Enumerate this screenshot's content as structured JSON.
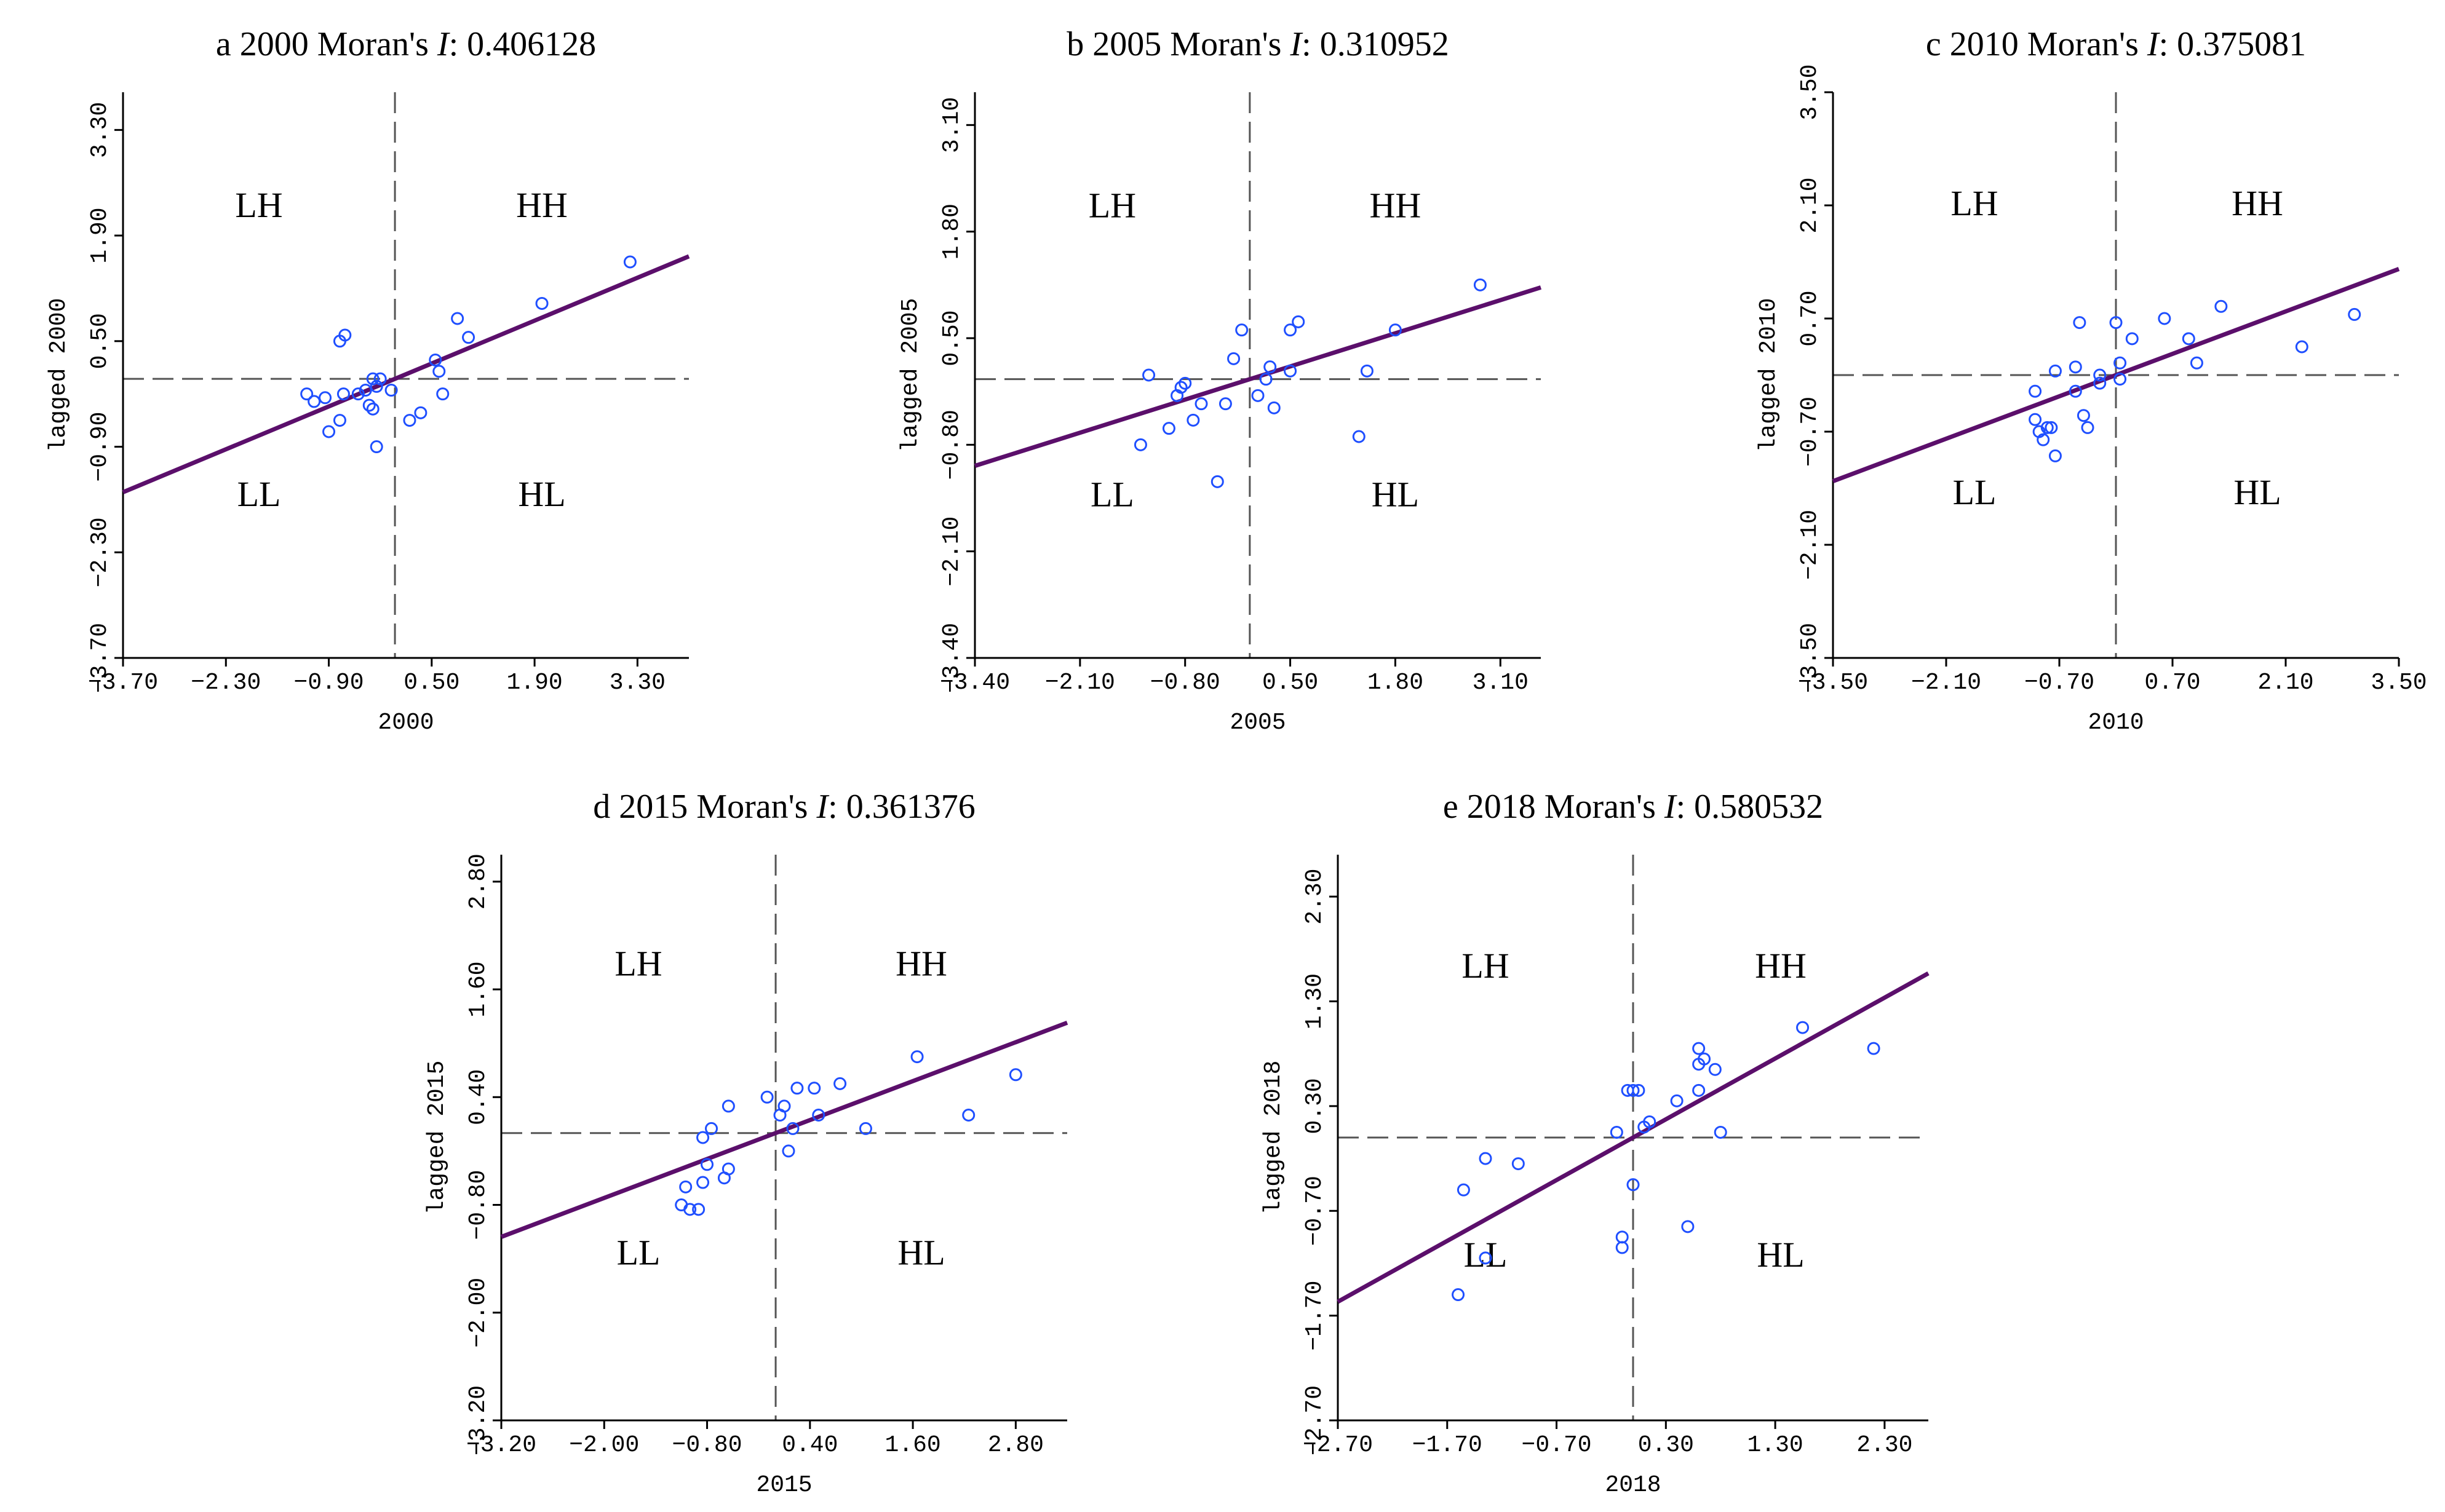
{
  "figure": {
    "statistic_label": "Moran's ",
    "statistic_symbol": "I",
    "quadrant_labels": {
      "lh": "LH",
      "hh": "HH",
      "ll": "LL",
      "hl": "HL"
    },
    "colors": {
      "points": "#1f4fff",
      "fit_line": "#5b0f6b",
      "axes": "#000000",
      "reference_lines": "#555555"
    }
  },
  "chart_data": [
    {
      "type": "scatter",
      "panel_letter": "a",
      "year": "2000",
      "morans_i": "0.406128",
      "xlabel": "2000",
      "ylabel": "lagged 2000",
      "xlim": [
        -3.7,
        4.0
      ],
      "ylim": [
        -3.7,
        3.8
      ],
      "xticks": [
        -3.7,
        -2.3,
        -0.9,
        0.5,
        1.9,
        3.3
      ],
      "xtick_labels": [
        "-3.70",
        "-2.30",
        "-0.90",
        "0.50",
        "1.90",
        "3.30"
      ],
      "yticks": [
        -3.7,
        -2.3,
        -0.9,
        0.5,
        1.9,
        3.3
      ],
      "ytick_labels": [
        "-3.70",
        "-2.30",
        "-0.90",
        "0.50",
        "1.90",
        "3.30"
      ],
      "slope": 0.406128,
      "points": [
        [
          -1.2,
          -0.2
        ],
        [
          -1.1,
          -0.3
        ],
        [
          -0.95,
          -0.25
        ],
        [
          -0.9,
          -0.7
        ],
        [
          -0.75,
          -0.55
        ],
        [
          -0.7,
          -0.2
        ],
        [
          -0.75,
          0.5
        ],
        [
          -0.68,
          0.58
        ],
        [
          -0.5,
          -0.2
        ],
        [
          -0.4,
          -0.15
        ],
        [
          -0.35,
          -0.35
        ],
        [
          -0.3,
          -0.4
        ],
        [
          -0.3,
          0.0
        ],
        [
          -0.25,
          -0.1
        ],
        [
          -0.2,
          0.0
        ],
        [
          -0.25,
          -0.9
        ],
        [
          -0.05,
          -0.15
        ],
        [
          0.2,
          -0.55
        ],
        [
          0.35,
          -0.45
        ],
        [
          0.55,
          0.25
        ],
        [
          0.6,
          0.1
        ],
        [
          0.65,
          -0.2
        ],
        [
          0.85,
          0.8
        ],
        [
          1.0,
          0.55
        ],
        [
          2.0,
          1.0
        ],
        [
          3.2,
          1.55
        ]
      ]
    },
    {
      "type": "scatter",
      "panel_letter": "b",
      "year": "2005",
      "morans_i": "0.310952",
      "xlabel": "2005",
      "ylabel": "lagged 2005",
      "xlim": [
        -3.4,
        3.6
      ],
      "ylim": [
        -3.4,
        3.5
      ],
      "xticks": [
        -3.4,
        -2.1,
        -0.8,
        0.5,
        1.8,
        3.1
      ],
      "xtick_labels": [
        "-3.40",
        "-2.10",
        "-0.80",
        "0.50",
        "1.80",
        "3.10"
      ],
      "yticks": [
        -3.4,
        -2.1,
        -0.8,
        0.5,
        1.8,
        3.1
      ],
      "ytick_labels": [
        "-3.40",
        "-2.10",
        "-0.80",
        "0.50",
        "1.80",
        "3.10"
      ],
      "slope": 0.310952,
      "points": [
        [
          -1.35,
          -0.8
        ],
        [
          -1.25,
          0.05
        ],
        [
          -1.0,
          -0.6
        ],
        [
          -0.9,
          -0.2
        ],
        [
          -0.85,
          -0.1
        ],
        [
          -0.8,
          -0.05
        ],
        [
          -0.7,
          -0.5
        ],
        [
          -0.6,
          -0.3
        ],
        [
          -0.4,
          -1.25
        ],
        [
          -0.3,
          -0.3
        ],
        [
          -0.2,
          0.25
        ],
        [
          -0.1,
          0.6
        ],
        [
          0.1,
          -0.2
        ],
        [
          0.2,
          0.0
        ],
        [
          0.25,
          0.15
        ],
        [
          0.3,
          -0.35
        ],
        [
          0.5,
          0.1
        ],
        [
          0.5,
          0.6
        ],
        [
          0.6,
          0.7
        ],
        [
          1.35,
          -0.7
        ],
        [
          1.45,
          0.1
        ],
        [
          1.8,
          0.6
        ],
        [
          2.85,
          1.15
        ]
      ]
    },
    {
      "type": "scatter",
      "panel_letter": "c",
      "year": "2010",
      "morans_i": "0.375081",
      "xlabel": "2010",
      "ylabel": "lagged 2010",
      "xlim": [
        -3.5,
        3.5
      ],
      "ylim": [
        -3.5,
        3.5
      ],
      "xticks": [
        -3.5,
        -2.1,
        -0.7,
        0.7,
        2.1,
        3.5
      ],
      "xtick_labels": [
        "-3.50",
        "-2.10",
        "-0.70",
        "0.70",
        "2.10",
        "3.50"
      ],
      "yticks": [
        -3.5,
        -2.1,
        -0.7,
        0.7,
        2.1,
        3.5
      ],
      "ytick_labels": [
        "-3.50",
        "-2.10",
        "-0.70",
        "0.70",
        "2.10",
        "3.50"
      ],
      "slope": 0.375081,
      "points": [
        [
          -1.0,
          -0.55
        ],
        [
          -0.95,
          -0.7
        ],
        [
          -0.9,
          -0.8
        ],
        [
          -0.85,
          -0.65
        ],
        [
          -0.8,
          -0.65
        ],
        [
          -1.0,
          -0.2
        ],
        [
          -0.75,
          -1.0
        ],
        [
          -0.75,
          0.05
        ],
        [
          -0.5,
          0.1
        ],
        [
          -0.5,
          -0.2
        ],
        [
          -0.45,
          0.65
        ],
        [
          -0.4,
          -0.5
        ],
        [
          -0.35,
          -0.65
        ],
        [
          -0.2,
          -0.1
        ],
        [
          -0.2,
          0.0
        ],
        [
          0.05,
          -0.05
        ],
        [
          0.0,
          0.65
        ],
        [
          0.05,
          0.15
        ],
        [
          0.2,
          0.45
        ],
        [
          0.6,
          0.7
        ],
        [
          0.9,
          0.45
        ],
        [
          1.0,
          0.15
        ],
        [
          1.3,
          0.85
        ],
        [
          2.3,
          0.35
        ],
        [
          2.95,
          0.75
        ]
      ]
    },
    {
      "type": "scatter",
      "panel_letter": "d",
      "year": "2015",
      "morans_i": "0.361376",
      "xlabel": "2015",
      "ylabel": "lagged 2015",
      "xlim": [
        -3.2,
        3.4
      ],
      "ylim": [
        -3.2,
        3.1
      ],
      "xticks": [
        -3.2,
        -2.0,
        -0.8,
        0.4,
        1.6,
        2.8
      ],
      "xtick_labels": [
        "-3.20",
        "-2.00",
        "-0.80",
        "0.40",
        "1.60",
        "2.80"
      ],
      "yticks": [
        -3.2,
        -2.0,
        -0.8,
        0.4,
        1.6,
        2.8
      ],
      "ytick_labels": [
        "-3.20",
        "-2.00",
        "-0.80",
        "0.40",
        "1.60",
        "2.80"
      ],
      "slope": 0.361376,
      "points": [
        [
          -1.1,
          -0.8
        ],
        [
          -1.05,
          -0.6
        ],
        [
          -1.0,
          -0.85
        ],
        [
          -0.9,
          -0.85
        ],
        [
          -0.85,
          -0.05
        ],
        [
          -0.85,
          -0.55
        ],
        [
          -0.8,
          -0.35
        ],
        [
          -0.75,
          0.05
        ],
        [
          -0.6,
          -0.5
        ],
        [
          -0.55,
          -0.4
        ],
        [
          -0.55,
          0.3
        ],
        [
          -0.1,
          0.4
        ],
        [
          0.05,
          0.2
        ],
        [
          0.1,
          0.3
        ],
        [
          0.15,
          -0.2
        ],
        [
          0.2,
          0.05
        ],
        [
          0.25,
          0.5
        ],
        [
          0.45,
          0.5
        ],
        [
          0.5,
          0.2
        ],
        [
          0.75,
          0.55
        ],
        [
          1.05,
          0.05
        ],
        [
          1.65,
          0.85
        ],
        [
          2.25,
          0.2
        ],
        [
          2.8,
          0.65
        ]
      ]
    },
    {
      "type": "scatter",
      "panel_letter": "e",
      "year": "2018",
      "morans_i": "0.580532",
      "xlabel": "2018",
      "ylabel": "lagged 2018",
      "xlim": [
        -2.7,
        2.7
      ],
      "ylim": [
        -2.7,
        2.7
      ],
      "xticks": [
        -2.7,
        -1.7,
        -0.7,
        0.3,
        1.3,
        2.3
      ],
      "xtick_labels": [
        "-2.70",
        "-1.70",
        "-0.70",
        "0.30",
        "1.30",
        "2.30"
      ],
      "yticks": [
        -2.7,
        -1.7,
        -0.7,
        0.3,
        1.3,
        2.3
      ],
      "ytick_labels": [
        "-2.70",
        "-1.70",
        "-0.70",
        "0.30",
        "1.30",
        "2.30"
      ],
      "slope": 0.580532,
      "points": [
        [
          -1.6,
          -1.5
        ],
        [
          -1.55,
          -0.5
        ],
        [
          -1.35,
          -0.2
        ],
        [
          -1.35,
          -1.15
        ],
        [
          -1.05,
          -0.25
        ],
        [
          -0.15,
          0.05
        ],
        [
          -0.1,
          -0.95
        ],
        [
          -0.1,
          -1.05
        ],
        [
          -0.05,
          0.45
        ],
        [
          0.0,
          0.45
        ],
        [
          0.0,
          -0.45
        ],
        [
          0.05,
          0.45
        ],
        [
          0.1,
          0.1
        ],
        [
          0.15,
          0.15
        ],
        [
          0.4,
          0.35
        ],
        [
          0.5,
          -0.85
        ],
        [
          0.6,
          0.45
        ],
        [
          0.6,
          0.7
        ],
        [
          0.6,
          0.85
        ],
        [
          0.65,
          0.75
        ],
        [
          0.75,
          0.65
        ],
        [
          0.8,
          0.05
        ],
        [
          1.55,
          1.05
        ],
        [
          2.2,
          0.85
        ]
      ]
    }
  ]
}
